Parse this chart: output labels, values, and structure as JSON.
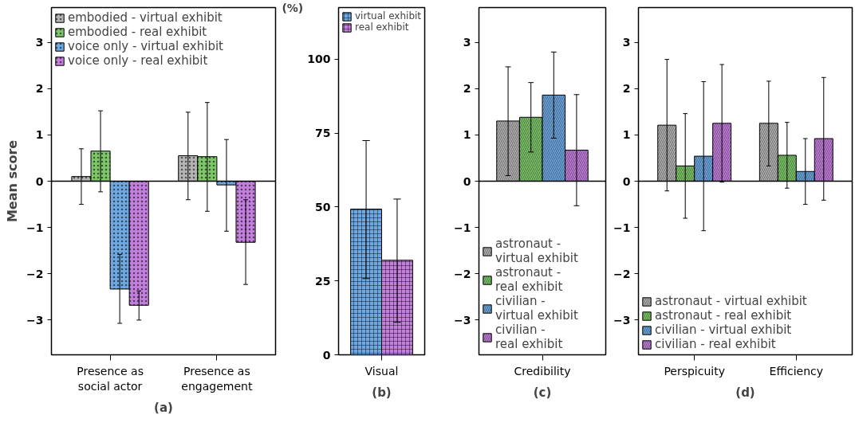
{
  "chart_data": [
    {
      "type": "bar",
      "title": "(a)",
      "ylabel": "Mean score",
      "categories": [
        "Presence as social actor",
        "Presence as engagement"
      ],
      "ylim": [
        -3.75,
        3.75
      ],
      "yticks": [
        -3,
        -2,
        -1,
        0,
        1,
        2,
        3
      ],
      "grid": false,
      "legend": "top left",
      "ref_lines": [
        {
          "axis": "y",
          "value": 0
        }
      ],
      "series": [
        {
          "name": "embodied - virtual exhibit",
          "color": "#b4b4b4",
          "values": [
            0.1,
            0.55
          ],
          "errors": [
            [
              -0.5,
              0.7
            ],
            [
              -0.4,
              1.49
            ]
          ]
        },
        {
          "name": "embodied - real exhibit",
          "color": "#7ec66a",
          "values": [
            0.65,
            0.53
          ],
          "errors": [
            [
              -0.23,
              1.52
            ],
            [
              -0.65,
              1.7
            ]
          ]
        },
        {
          "name": "voice only - virtual exhibit",
          "color": "#6fa8e0",
          "values": [
            -2.33,
            -0.08
          ],
          "errors": [
            [
              -3.07,
              -1.58
            ],
            [
              -1.08,
              0.9
            ]
          ]
        },
        {
          "name": "voice only - real exhibit",
          "color": "#c27fdc",
          "values": [
            -2.68,
            -1.32
          ],
          "errors": [
            [
              -3.0,
              -2.37
            ],
            [
              -2.23,
              -0.4
            ]
          ]
        }
      ]
    },
    {
      "type": "bar",
      "title": "(b)",
      "ylabel": "(%)",
      "categories": [
        "Visual"
      ],
      "ylim": [
        0,
        117.5
      ],
      "yticks": [
        0,
        25,
        50,
        75,
        100
      ],
      "grid": false,
      "legend": "top left",
      "series": [
        {
          "name": "virtual exhibit",
          "color": "#6fa8e0",
          "values": [
            49.3
          ],
          "errors": [
            [
              25.8,
              72.5
            ]
          ]
        },
        {
          "name": "real exhibit",
          "color": "#c27fdc",
          "values": [
            32
          ],
          "errors": [
            [
              11,
              52.7
            ]
          ]
        }
      ]
    },
    {
      "type": "bar",
      "title": "(c)",
      "categories": [
        "Credibility"
      ],
      "ylim": [
        -3.75,
        3.75
      ],
      "yticks": [
        -3,
        -2,
        -1,
        0,
        1,
        2,
        3
      ],
      "grid": false,
      "legend": "bottom left",
      "ref_lines": [
        {
          "axis": "y",
          "value": 0
        }
      ],
      "series": [
        {
          "name": "astronaut - virtual exhibit",
          "color": "#b4b4b4",
          "values": [
            1.3
          ],
          "errors": [
            [
              0.12,
              2.47
            ]
          ]
        },
        {
          "name": "astronaut - real exhibit",
          "color": "#7ec66a",
          "values": [
            1.38
          ],
          "errors": [
            [
              0.63,
              2.13
            ]
          ]
        },
        {
          "name": "civilian - virtual exhibit",
          "color": "#6fa8e0",
          "values": [
            1.86
          ],
          "errors": [
            [
              0.93,
              2.79
            ]
          ]
        },
        {
          "name": "civilian - real exhibit",
          "color": "#c27fdc",
          "values": [
            0.67
          ],
          "errors": [
            [
              -0.53,
              1.87
            ]
          ]
        }
      ]
    },
    {
      "type": "bar",
      "title": "(d)",
      "categories": [
        "Perspicuity",
        "Efficiency"
      ],
      "ylim": [
        -3.75,
        3.75
      ],
      "yticks": [
        -3,
        -2,
        -1,
        0,
        1,
        2,
        3
      ],
      "grid": false,
      "legend": "bottom left",
      "ref_lines": [
        {
          "axis": "y",
          "value": 0
        }
      ],
      "series": [
        {
          "name": "astronaut - virtual exhibit",
          "color": "#b4b4b4",
          "values": [
            1.21,
            1.25
          ],
          "errors": [
            [
              -0.21,
              2.63
            ],
            [
              0.33,
              2.16
            ]
          ]
        },
        {
          "name": "astronaut - real exhibit",
          "color": "#7ec66a",
          "values": [
            0.33,
            0.56
          ],
          "errors": [
            [
              -0.8,
              1.46
            ],
            [
              -0.15,
              1.27
            ]
          ]
        },
        {
          "name": "civilian - virtual exhibit",
          "color": "#6fa8e0",
          "values": [
            0.54,
            0.21
          ],
          "errors": [
            [
              -1.07,
              2.15
            ],
            [
              -0.5,
              0.92
            ]
          ]
        },
        {
          "name": "civilian - real exhibit",
          "color": "#c27fdc",
          "values": [
            1.25,
            0.92
          ],
          "errors": [
            [
              -0.02,
              2.52
            ],
            [
              -0.41,
              2.24
            ]
          ]
        }
      ]
    }
  ]
}
